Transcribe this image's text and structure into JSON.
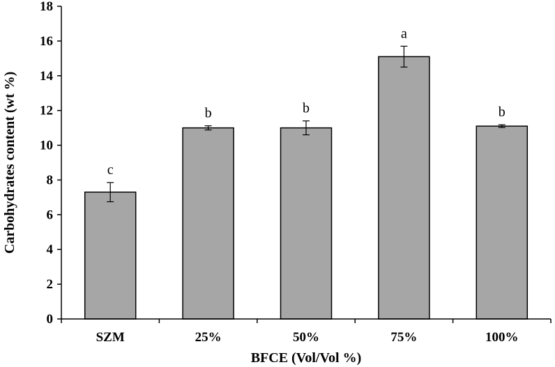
{
  "chart_data": {
    "type": "bar",
    "categories": [
      "SZM",
      "25%",
      "50%",
      "75%",
      "100%"
    ],
    "values": [
      7.3,
      11.0,
      11.0,
      15.1,
      11.1
    ],
    "errors": [
      0.55,
      0.12,
      0.4,
      0.6,
      0.08
    ],
    "significance_labels": [
      "c",
      "b",
      "b",
      "a",
      "b"
    ],
    "xlabel": "BFCE (Vol/Vol %)",
    "ylabel": "Carbohydrates content (wt %)",
    "ylim": [
      0,
      18
    ],
    "yticks": [
      0,
      2,
      4,
      6,
      8,
      10,
      12,
      14,
      16,
      18
    ],
    "ytick_labels": [
      "0",
      "2",
      "4",
      "6",
      "8",
      "10",
      "12",
      "14",
      "16",
      "18"
    ],
    "grid": false,
    "legend": "none",
    "colors": {
      "bar_fill": "#a6a6a6",
      "bar_stroke": "#000000",
      "axis": "#000000"
    }
  }
}
